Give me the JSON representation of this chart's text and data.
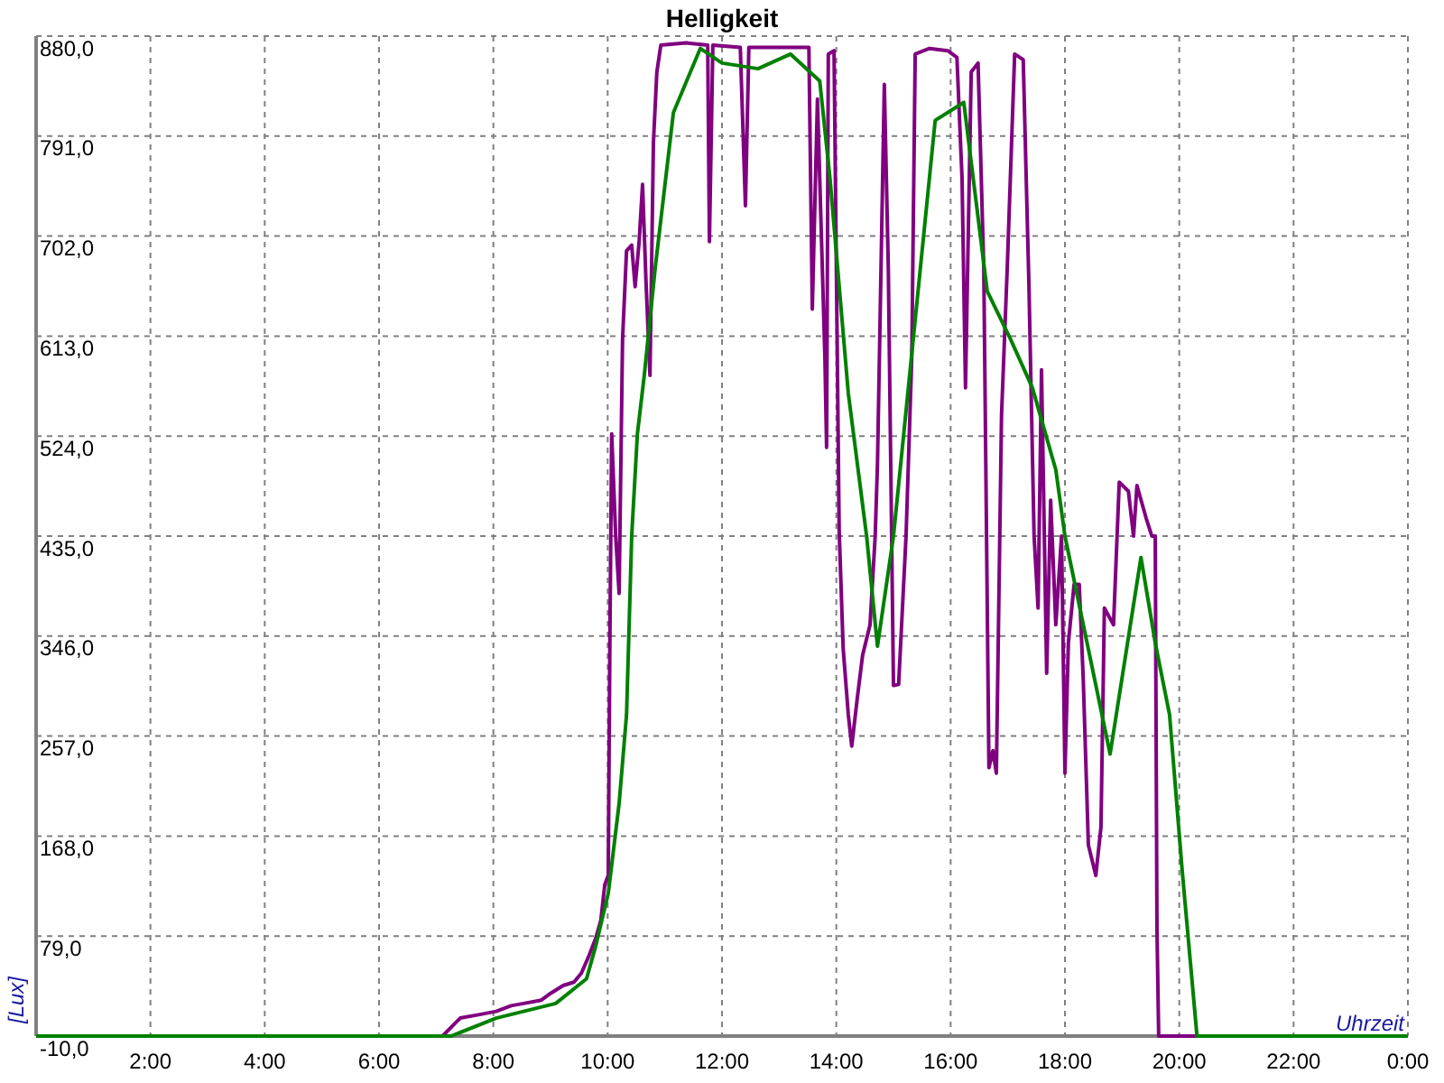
{
  "chart_data": {
    "type": "line",
    "title": "Helligkeit",
    "xlabel": "Uhrzeit",
    "ylabel": "[Lux]",
    "xlim": [
      0,
      24
    ],
    "ylim": [
      -10,
      880
    ],
    "xticks": [
      {
        "value": 2,
        "label": "2:00"
      },
      {
        "value": 4,
        "label": "4:00"
      },
      {
        "value": 6,
        "label": "6:00"
      },
      {
        "value": 8,
        "label": "8:00"
      },
      {
        "value": 10,
        "label": "10:00"
      },
      {
        "value": 12,
        "label": "12:00"
      },
      {
        "value": 14,
        "label": "14:00"
      },
      {
        "value": 16,
        "label": "16:00"
      },
      {
        "value": 18,
        "label": "18:00"
      },
      {
        "value": 20,
        "label": "20:00"
      },
      {
        "value": 22,
        "label": "22:00"
      },
      {
        "value": 24,
        "label": "0:00"
      }
    ],
    "yticks": [
      {
        "value": -10,
        "label": "-10,0"
      },
      {
        "value": 79,
        "label": "79,0"
      },
      {
        "value": 168,
        "label": "168,0"
      },
      {
        "value": 257,
        "label": "257,0"
      },
      {
        "value": 346,
        "label": "346,0"
      },
      {
        "value": 435,
        "label": "435,0"
      },
      {
        "value": 524,
        "label": "524,0"
      },
      {
        "value": 613,
        "label": "613,0"
      },
      {
        "value": 702,
        "label": "702,0"
      },
      {
        "value": 791,
        "label": "791,0"
      },
      {
        "value": 880,
        "label": "880,0"
      }
    ],
    "grid": true,
    "line_style": "solid",
    "marker": "none",
    "series": [
      {
        "color": "#800080",
        "x": [
          0,
          7.11,
          7.42,
          7.74,
          8.05,
          8.31,
          8.53,
          8.84,
          9.0,
          9.22,
          9.41,
          9.54,
          9.66,
          9.79,
          9.88,
          9.95,
          10.01,
          10.04,
          10.07,
          10.14,
          10.2,
          10.26,
          10.33,
          10.42,
          10.48,
          10.55,
          10.61,
          10.67,
          10.74,
          10.8,
          10.86,
          10.93,
          11.37,
          11.75,
          11.78,
          11.84,
          12.32,
          12.41,
          12.47,
          13.52,
          13.58,
          13.67,
          13.8,
          13.83,
          13.86,
          13.96,
          14.05,
          14.12,
          14.21,
          14.27,
          14.37,
          14.46,
          14.59,
          14.68,
          14.72,
          14.84,
          14.91,
          15.0,
          15.09,
          15.22,
          15.32,
          15.38,
          15.63,
          15.95,
          16.11,
          16.2,
          16.26,
          16.36,
          16.48,
          16.58,
          16.67,
          16.74,
          16.8,
          16.89,
          16.99,
          17.12,
          17.27,
          17.37,
          17.46,
          17.53,
          17.59,
          17.68,
          17.75,
          17.84,
          17.94,
          18.0,
          18.06,
          18.16,
          18.25,
          18.32,
          18.41,
          18.54,
          18.63,
          18.69,
          18.85,
          18.95,
          19.11,
          19.2,
          19.26,
          19.42,
          19.52,
          19.58,
          19.61,
          19.64,
          24
        ],
        "values": [
          -10,
          -10,
          6,
          9,
          12,
          17,
          19,
          22,
          28,
          35,
          38,
          46,
          60,
          77,
          93,
          125,
          133,
          351,
          526,
          435,
          384,
          610,
          689,
          694,
          657,
          697,
          748,
          662,
          578,
          785,
          848,
          872,
          874,
          872,
          697,
          872,
          870,
          729,
          870,
          870,
          637,
          824,
          594,
          514,
          864,
          867,
          440,
          335,
          276,
          248,
          292,
          329,
          356,
          435,
          499,
          837,
          673,
          302,
          303,
          435,
          594,
          864,
          869,
          867,
          861,
          753,
          567,
          848,
          856,
          673,
          229,
          244,
          224,
          542,
          673,
          864,
          859,
          658,
          435,
          371,
          583,
          313,
          467,
          356,
          435,
          224,
          340,
          392,
          392,
          308,
          160,
          133,
          176,
          371,
          356,
          483,
          475,
          435,
          480,
          451,
          435,
          435,
          86,
          -10,
          -10
        ]
      },
      {
        "color": "#008000",
        "x": [
          0,
          7.26,
          8.05,
          9.09,
          9.63,
          9.79,
          10.01,
          10.2,
          10.33,
          10.42,
          10.52,
          10.64,
          10.83,
          11.15,
          11.62,
          12.0,
          12.63,
          13.2,
          13.71,
          13.89,
          14.21,
          14.53,
          14.72,
          15.0,
          15.73,
          16.23,
          16.64,
          17.05,
          17.43,
          17.84,
          18.0,
          18.79,
          19.33,
          19.58,
          19.83,
          20.05,
          20.31,
          24
        ],
        "values": [
          -10,
          -10,
          6,
          19,
          41,
          70,
          117,
          197,
          276,
          435,
          526,
          578,
          673,
          812,
          869,
          856,
          851,
          864,
          840,
          753,
          562,
          435,
          337,
          435,
          805,
          821,
          653,
          610,
          567,
          494,
          435,
          241,
          416,
          340,
          276,
          138,
          -10,
          -10
        ]
      }
    ]
  }
}
